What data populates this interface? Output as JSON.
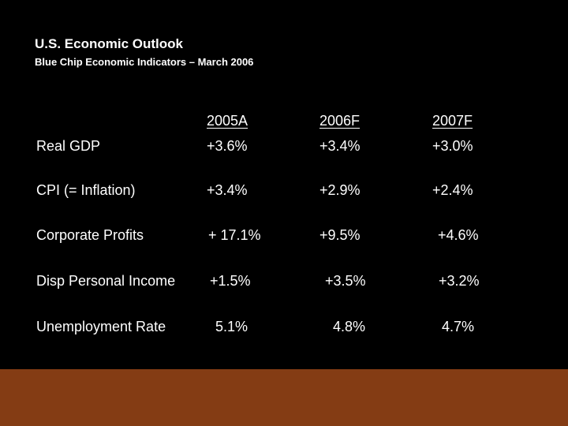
{
  "slide": {
    "title": "U.S. Economic Outlook",
    "subtitle": "Blue Chip Economic Indicators – March 2006",
    "columns": [
      "2005A",
      "2006F",
      "2007F"
    ],
    "rows": [
      {
        "label": "Real GDP",
        "values": [
          "+3.6%",
          "+3.4%",
          "+3.0%"
        ]
      },
      {
        "label": "CPI (= Inflation)",
        "values": [
          "+3.4%",
          "+2.9%",
          "+2.4%"
        ]
      },
      {
        "label": "Corporate Profits",
        "values": [
          "+ 17.1%",
          "+9.5%",
          "+4.6%"
        ]
      },
      {
        "label": "Disp Personal Income",
        "values": [
          "+1.5%",
          "+3.5%",
          "+3.2%"
        ]
      },
      {
        "label": "Unemployment Rate",
        "values": [
          "5.1%",
          "4.8%",
          "4.7%"
        ]
      }
    ]
  },
  "colors": {
    "background": "#000000",
    "text": "#ffffff",
    "footer_bar": "#843c14"
  }
}
